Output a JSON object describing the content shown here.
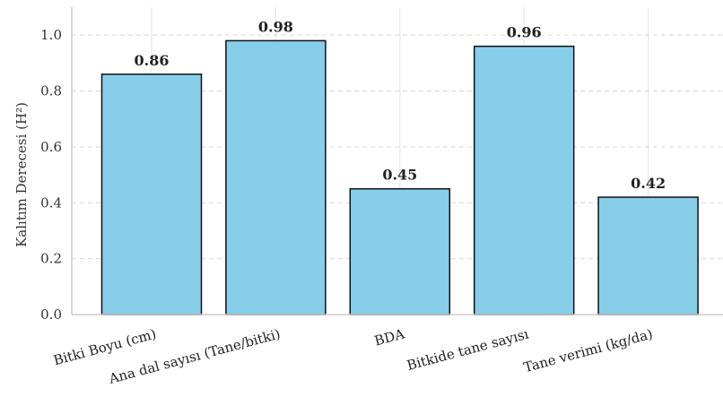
{
  "chart_data": {
    "type": "bar",
    "categories": [
      "Bitki Boyu (cm)",
      "Ana dal sayısı (Tane/bitki)",
      "BDA",
      "Bitkide tane sayısı",
      "Tane verimi (kg/da)"
    ],
    "values": [
      0.86,
      0.98,
      0.45,
      0.96,
      0.42
    ],
    "data_labels": [
      "0.86",
      "0.98",
      "0.45",
      "0.96",
      "0.42"
    ],
    "title": "",
    "xlabel": "",
    "ylabel": "Kalıtım Derecesi (H²)",
    "ylim": [
      0,
      1.1
    ],
    "yticks": [
      0.0,
      0.2,
      0.4,
      0.6,
      0.8,
      1.0
    ],
    "ytick_labels": [
      "0.0",
      "0.2",
      "0.4",
      "0.6",
      "0.8",
      "1.0"
    ],
    "bar_color": "#87ceeb",
    "edge_color": "#111111",
    "grid": true,
    "legend": "none"
  }
}
